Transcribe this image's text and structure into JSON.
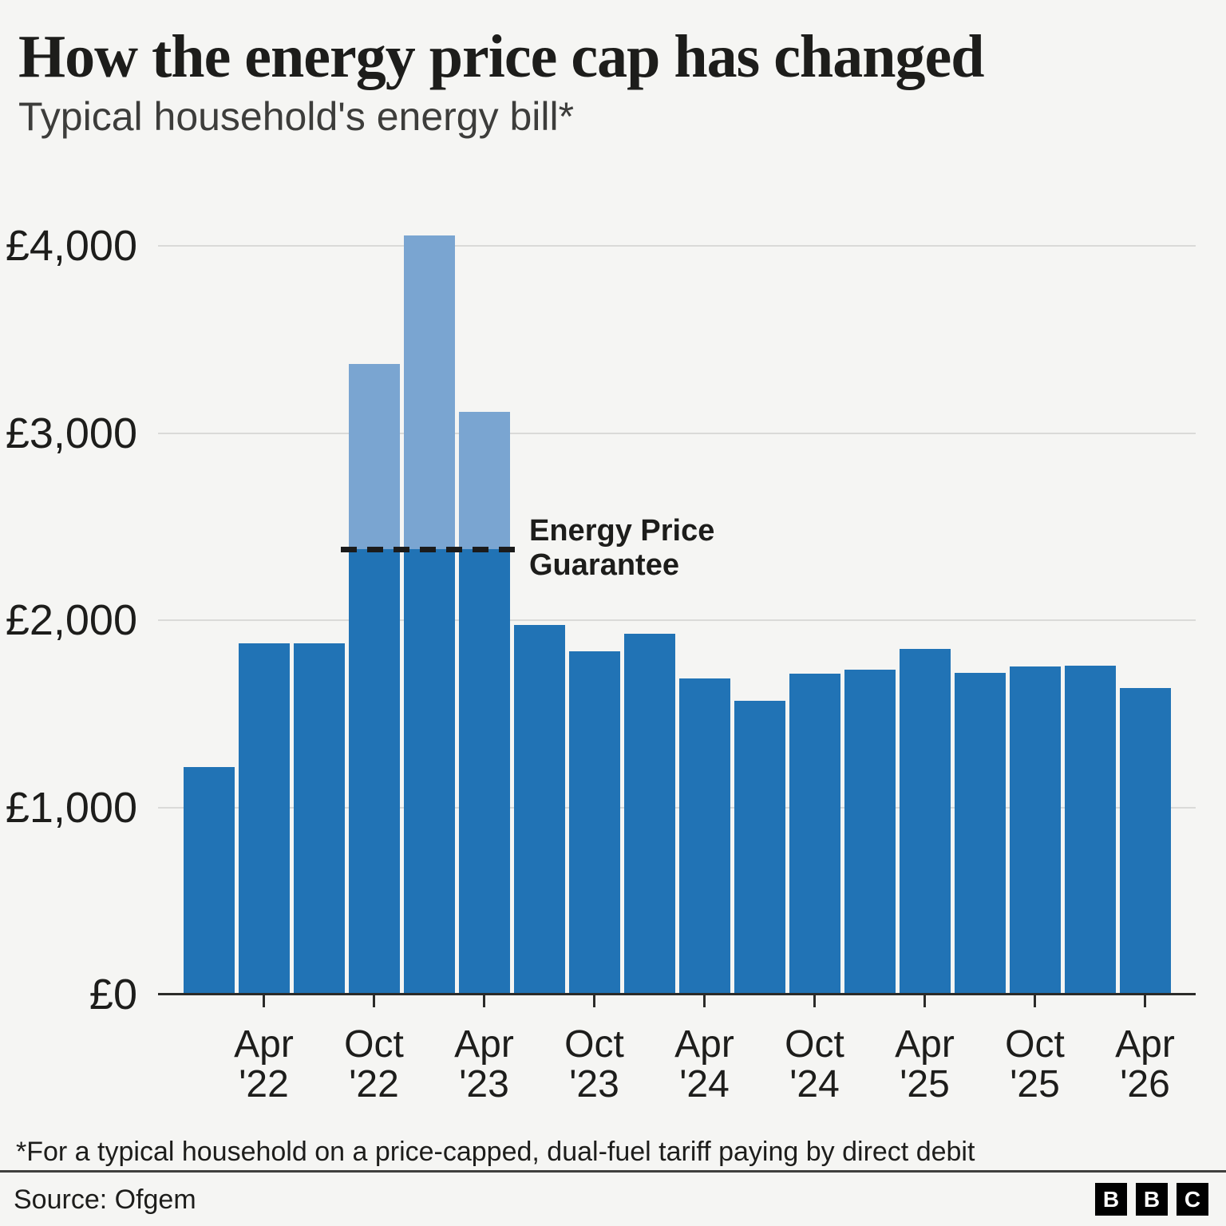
{
  "title": "How the energy price cap has changed",
  "subtitle": "Typical household's energy bill*",
  "annotation": {
    "line1": "Energy Price",
    "line2": "Guarantee"
  },
  "footnote": "*For a typical household on a price-capped, dual-fuel tariff paying by direct debit",
  "source_label": "Source: Ofgem",
  "logo_letters": [
    "B",
    "B",
    "C"
  ],
  "colors": {
    "background": "#f5f5f3",
    "bar": "#2173b5",
    "bar_light": "#7aa5d1",
    "grid": "#dadad8",
    "axis": "#2b2b29",
    "text": "#1d1d1b",
    "dash": "#1b1b1b"
  },
  "chart_data": {
    "type": "bar",
    "title": "How the energy price cap has changed",
    "subtitle": "Typical household's energy bill*",
    "currency": "GBP",
    "unit": "pounds per year, typical household",
    "ylim": [
      0,
      4270
    ],
    "grid": "horizontal",
    "legend": "none",
    "yticks": [
      {
        "value": 0,
        "label": "£0"
      },
      {
        "value": 1000,
        "label": "£1,000"
      },
      {
        "value": 2000,
        "label": "£2,000"
      },
      {
        "value": 3000,
        "label": "£3,000"
      },
      {
        "value": 4000,
        "label": "£4,000"
      }
    ],
    "xticks_labeled": [
      "Apr '22",
      "Oct '22",
      "Apr '23",
      "Oct '23",
      "Apr '24",
      "Oct '24",
      "Apr '25",
      "Oct '25",
      "Apr '26"
    ],
    "energy_price_guarantee_level": 2380,
    "bars": [
      {
        "quarter": "Jan '22",
        "value": 1216
      },
      {
        "quarter": "Apr '22",
        "value": 1877
      },
      {
        "quarter": "Jul '22",
        "value": 1877
      },
      {
        "quarter": "Oct '22",
        "value": 2380,
        "cap_without_epg": 3372
      },
      {
        "quarter": "Jan '23",
        "value": 2380,
        "cap_without_epg": 4059
      },
      {
        "quarter": "Apr '23",
        "value": 2380,
        "cap_without_epg": 3116
      },
      {
        "quarter": "Jul '23",
        "value": 1976
      },
      {
        "quarter": "Oct '23",
        "value": 1834
      },
      {
        "quarter": "Jan '24",
        "value": 1928
      },
      {
        "quarter": "Apr '24",
        "value": 1690
      },
      {
        "quarter": "Jul '24",
        "value": 1568
      },
      {
        "quarter": "Oct '24",
        "value": 1717
      },
      {
        "quarter": "Jan '25",
        "value": 1738
      },
      {
        "quarter": "Apr '25",
        "value": 1849
      },
      {
        "quarter": "Jul '25",
        "value": 1720
      },
      {
        "quarter": "Oct '25",
        "value": 1755
      },
      {
        "quarter": "Jan '26",
        "value": 1758
      },
      {
        "quarter": "Apr '26",
        "value": 1640
      }
    ]
  }
}
